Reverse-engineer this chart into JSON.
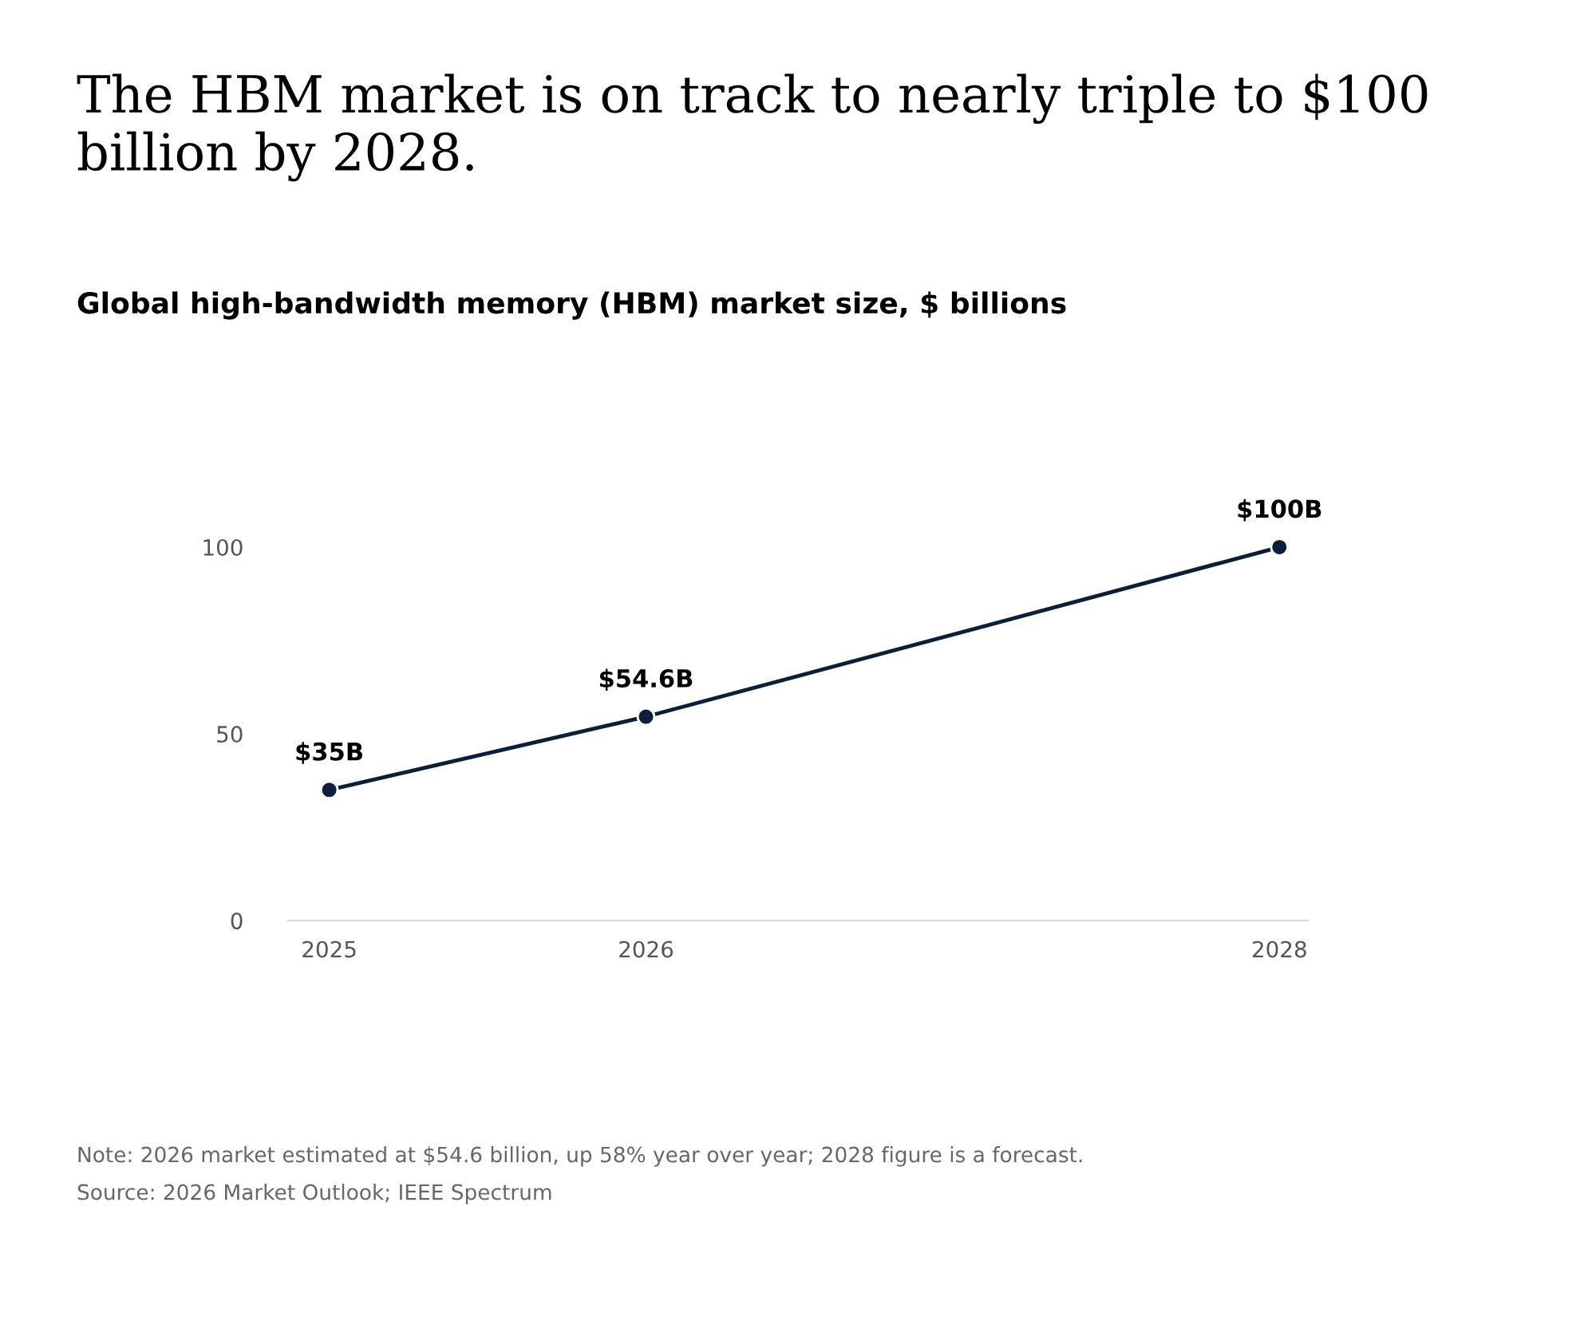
{
  "chart_data": {
    "type": "line",
    "title": "The HBM market is on track to nearly triple to $100 billion by 2028.",
    "subtitle": "Global high-bandwidth memory (HBM) market size, $ billions",
    "x": [
      2025,
      2026,
      2028
    ],
    "series": [
      {
        "color": "#0b1f3a",
        "values": [
          35,
          54.6,
          100
        ],
        "value_labels": [
          "$35B",
          "$54.6B",
          "$100B"
        ]
      }
    ],
    "xlim": [
      2024.87,
      2028.09
    ],
    "ylim": [
      0,
      100
    ],
    "xticks": [
      2025,
      2026,
      2028
    ],
    "yticks": [
      0,
      50,
      100
    ],
    "grid": false,
    "marker": "circle",
    "line_style": "solid",
    "legend": false,
    "annotations": [
      "Note: 2026 market estimated at $54.6 billion, up 58% year over year; 2028 figure is a forecast.",
      "Source: 2026 Market Outlook; IEEE Spectrum"
    ]
  }
}
